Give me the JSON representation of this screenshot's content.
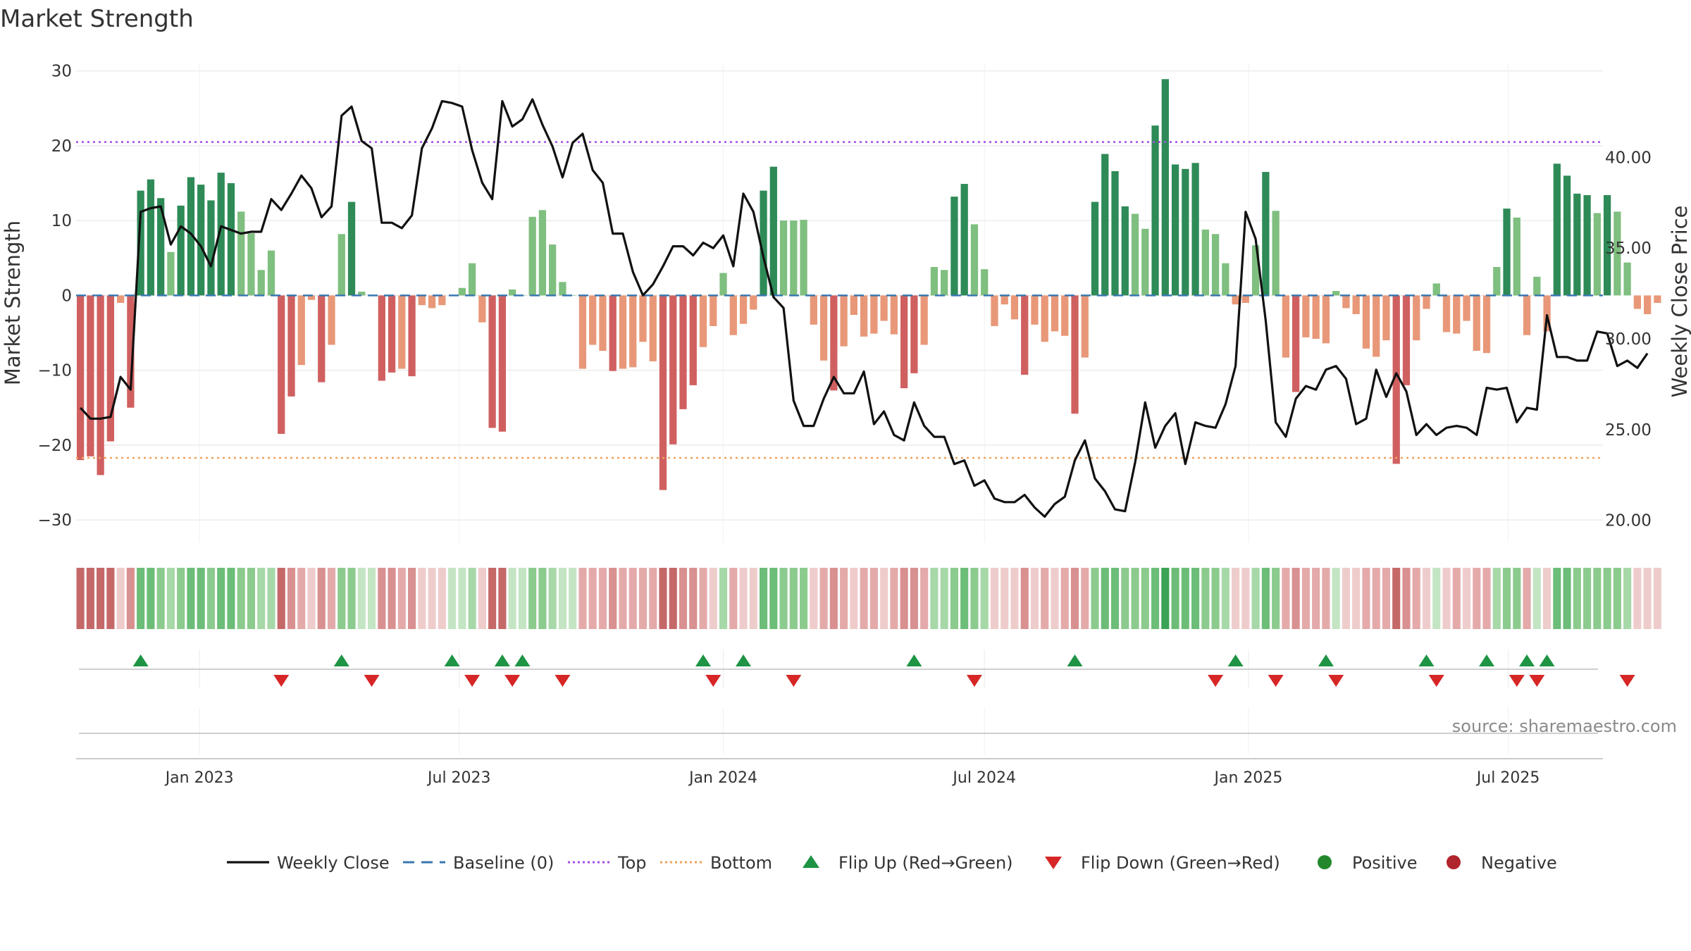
{
  "chart_data": {
    "type": "bar",
    "title": "Market Strength",
    "ylabel_left": "Market Strength",
    "ylabel_right": "Weekly Close Price",
    "ylim_left": [
      -33,
      31
    ],
    "yticks_left": [
      30,
      20,
      10,
      0,
      -10,
      -20,
      -30
    ],
    "yticks_left_labels": [
      "30",
      "20",
      "10",
      "0",
      "−10",
      "−20",
      "−30"
    ],
    "ylim_right": [
      18.78,
      45.18
    ],
    "yticks_right": [
      40,
      35,
      30,
      25,
      20
    ],
    "yticks_right_labels": [
      "40.00",
      "35.00",
      "30.00",
      "25.00",
      "20.00"
    ],
    "top_level": 20.5,
    "bottom_level": -21.7,
    "start_week": "2022-10-10",
    "x_range": [
      "2022-10-07",
      "2025-09-05"
    ],
    "x_ticks": [
      {
        "date": "2023-01-01",
        "label": "Jan 2023"
      },
      {
        "date": "2023-07-01",
        "label": "Jul 2023"
      },
      {
        "date": "2024-01-01",
        "label": "Jan 2024"
      },
      {
        "date": "2024-07-01",
        "label": "Jul 2024"
      },
      {
        "date": "2025-01-01",
        "label": "Jan 2025"
      },
      {
        "date": "2025-07-01",
        "label": "Jul 2025"
      }
    ],
    "series": [
      {
        "name": "Market Strength",
        "type": "bar",
        "values": [
          -22,
          -21.5,
          -24,
          -19.5,
          -1,
          -15,
          14,
          15.5,
          13,
          5.8,
          12,
          15.8,
          14.8,
          12.7,
          16.4,
          15,
          11.2,
          8.3,
          3.4,
          6,
          -18.5,
          -13.5,
          -9.3,
          -0.6,
          -11.6,
          -6.6,
          8.2,
          12.5,
          0.5,
          0,
          -11.4,
          -10.3,
          -9.8,
          -10.8,
          -1.3,
          -1.7,
          -1.3,
          0,
          1,
          4.3,
          -3.6,
          -17.7,
          -18.2,
          0.8,
          0,
          10.5,
          11.4,
          6.8,
          1.8,
          0,
          -9.8,
          -6.6,
          -7.4,
          -10.1,
          -9.8,
          -9.6,
          -6.2,
          -8.8,
          -26,
          -19.9,
          -15.2,
          -12,
          -6.9,
          -4.1,
          3,
          -5.3,
          -3.8,
          -1.9,
          14,
          17.2,
          10,
          10,
          10.1,
          -3.9,
          -8.7,
          -12.7,
          -6.8,
          -2.6,
          -5.5,
          -5.1,
          -3.4,
          -5.2,
          -12.4,
          -10.4,
          -6.6,
          3.8,
          3.4,
          13.2,
          14.9,
          9.5,
          3.5,
          -4.1,
          -1.2,
          -3.2,
          -10.6,
          -3.9,
          -6.2,
          -4.8,
          -5.4,
          -15.8,
          -8.3,
          12.5,
          18.9,
          16.6,
          11.9,
          10.9,
          8.9,
          22.7,
          28.9,
          17.5,
          16.9,
          17.7,
          8.8,
          8.2,
          4.3,
          -1.2,
          -1,
          6.7,
          16.5,
          11.3,
          -8.3,
          -12.9,
          -5.6,
          -5.8,
          -6.4,
          0.6,
          -1.7,
          -2.5,
          -7.1,
          -8.2,
          -6,
          -22.5,
          -12,
          -6,
          -1.8,
          1.6,
          -4.9,
          -5.1,
          -3.4,
          -7.4,
          -7.7,
          3.8,
          11.6,
          10.4,
          -5.3,
          2.5,
          -4.8,
          17.6,
          16,
          13.6,
          13.4,
          11,
          13.4,
          11.2,
          4.4,
          -1.8,
          -2.5,
          -1
        ]
      },
      {
        "name": "Weekly Close",
        "type": "line",
        "values": [
          26.2,
          25.6,
          25.6,
          25.7,
          27.9,
          27.2,
          37,
          37.2,
          37.3,
          35.2,
          36.2,
          35.8,
          35.1,
          34,
          36.2,
          36,
          35.8,
          35.9,
          35.9,
          37.7,
          37.1,
          38,
          39,
          38.3,
          36.7,
          37.3,
          42.3,
          42.8,
          40.9,
          40.5,
          36.4,
          36.4,
          36.1,
          36.8,
          40.5,
          41.6,
          43.1,
          43,
          42.8,
          40.4,
          38.6,
          37.7,
          43.1,
          41.7,
          42.1,
          43.2,
          41.8,
          40.6,
          38.9,
          40.8,
          41.3,
          39.3,
          38.6,
          35.8,
          35.8,
          33.7,
          32.4,
          33,
          34,
          35.1,
          35.1,
          34.6,
          35.3,
          35,
          35.7,
          34,
          38,
          37,
          34.5,
          32.3,
          31.7,
          26.6,
          25.2,
          25.2,
          26.7,
          27.9,
          27,
          27,
          28.2,
          25.3,
          26,
          24.7,
          24.4,
          26.5,
          25.2,
          24.6,
          24.6,
          23.1,
          23.3,
          21.9,
          22.2,
          21.2,
          21,
          21,
          21.4,
          20.7,
          20.2,
          20.9,
          21.3,
          23.3,
          24.4,
          22.3,
          21.6,
          20.6,
          20.5,
          23.2,
          26.5,
          24,
          25.2,
          25.9,
          23.1,
          25.4,
          25.2,
          25.1,
          26.4,
          28.5,
          37,
          35.5,
          31,
          25.4,
          24.6,
          26.7,
          27.4,
          27.2,
          28.3,
          28.5,
          27.8,
          25.3,
          25.6,
          28.3,
          26.8,
          28.1,
          27.1,
          24.7,
          25.3,
          24.7,
          25.1,
          25.2,
          25.1,
          24.7,
          27.3,
          27.2,
          27.3,
          25.4,
          26.2,
          26.1,
          31.3,
          29,
          29,
          28.8,
          28.8,
          30.4,
          30.3,
          28.5,
          28.8,
          28.4,
          29.2
        ]
      }
    ],
    "flip_up_weeks": [
      6,
      26,
      37,
      42,
      44,
      62,
      66,
      83,
      99,
      115,
      124,
      134,
      140,
      144,
      146
    ],
    "flip_down_weeks": [
      20,
      29,
      39,
      43,
      48,
      63,
      71,
      89,
      113,
      119,
      125,
      135,
      143,
      145,
      154
    ],
    "legend": [
      {
        "symbol": "line",
        "color": "#111111",
        "label": "Weekly Close"
      },
      {
        "symbol": "dash",
        "color": "#3a78b0",
        "label": "Baseline (0)"
      },
      {
        "symbol": "dot",
        "color": "#a24de8",
        "label": "Top"
      },
      {
        "symbol": "dot",
        "color": "#f0a35a",
        "label": "Bottom"
      },
      {
        "symbol": "triangle-up",
        "color": "#1e9444",
        "label": "Flip Up (Red→Green)"
      },
      {
        "symbol": "triangle-down",
        "color": "#d62626",
        "label": "Flip Down (Green→Red)"
      },
      {
        "symbol": "circle",
        "color": "#23882c",
        "label": "Positive"
      },
      {
        "symbol": "circle",
        "color": "#b0252c",
        "label": "Negative"
      }
    ],
    "source": "source: sharemaestro.com",
    "colors": {
      "pos_strong": "#2e8b57",
      "pos_weak": "#7fbf7f",
      "neg_strong": "#d06060",
      "neg_weak": "#e89878",
      "close_line": "#111111",
      "baseline": "#3a78b0",
      "top": "#a24de8",
      "bottom": "#f0a35a",
      "flip_up": "#1e9444",
      "flip_down": "#d62626",
      "grid": "#ececec"
    }
  }
}
